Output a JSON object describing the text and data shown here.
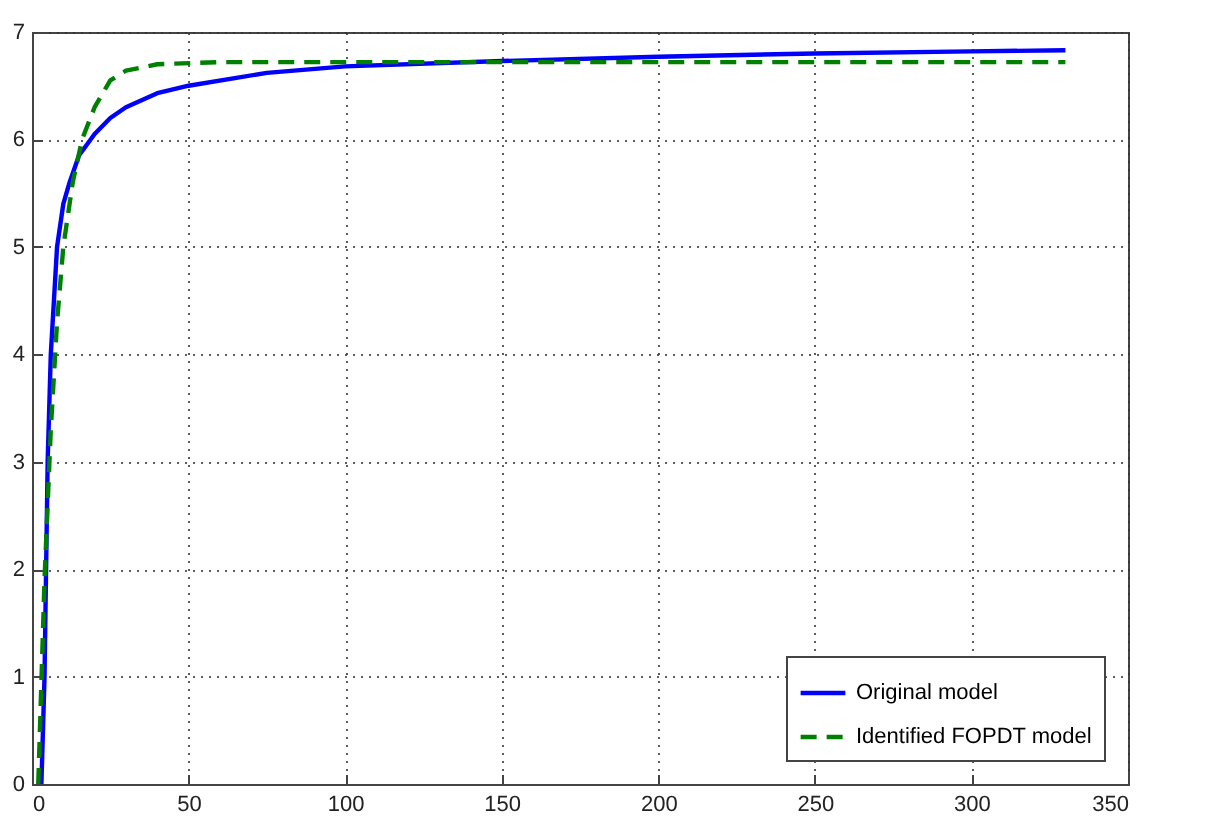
{
  "chart_data": {
    "type": "line",
    "xlim": [
      0,
      350
    ],
    "ylim": [
      0,
      7
    ],
    "xticks": [
      0,
      50,
      100,
      150,
      200,
      250,
      300,
      350
    ],
    "yticks": [
      0,
      1,
      2,
      3,
      4,
      5,
      6,
      7
    ],
    "grid": true,
    "legend": "bottom right",
    "series": [
      {
        "name": "Original model",
        "color": "#0000ff",
        "line_style": "solid",
        "x": [
          3,
          4,
          5,
          6,
          8,
          10,
          12,
          15,
          20,
          25,
          30,
          40,
          50,
          75,
          100,
          150,
          200,
          250,
          300,
          330
        ],
        "values": [
          0,
          1,
          3,
          4,
          5,
          5.4,
          5.6,
          5.85,
          6.05,
          6.2,
          6.3,
          6.43,
          6.5,
          6.62,
          6.68,
          6.73,
          6.77,
          6.8,
          6.82,
          6.83
        ]
      },
      {
        "name": "Identified FOPDT model",
        "color": "#008000",
        "line_style": "dashed",
        "x": [
          2,
          4,
          6,
          8,
          10,
          13,
          16,
          20,
          25,
          30,
          40,
          60,
          100,
          200,
          330
        ],
        "values": [
          0,
          1.9,
          3.3,
          4.3,
          5.0,
          5.6,
          6.0,
          6.3,
          6.55,
          6.64,
          6.7,
          6.72,
          6.72,
          6.72,
          6.72
        ]
      }
    ]
  }
}
